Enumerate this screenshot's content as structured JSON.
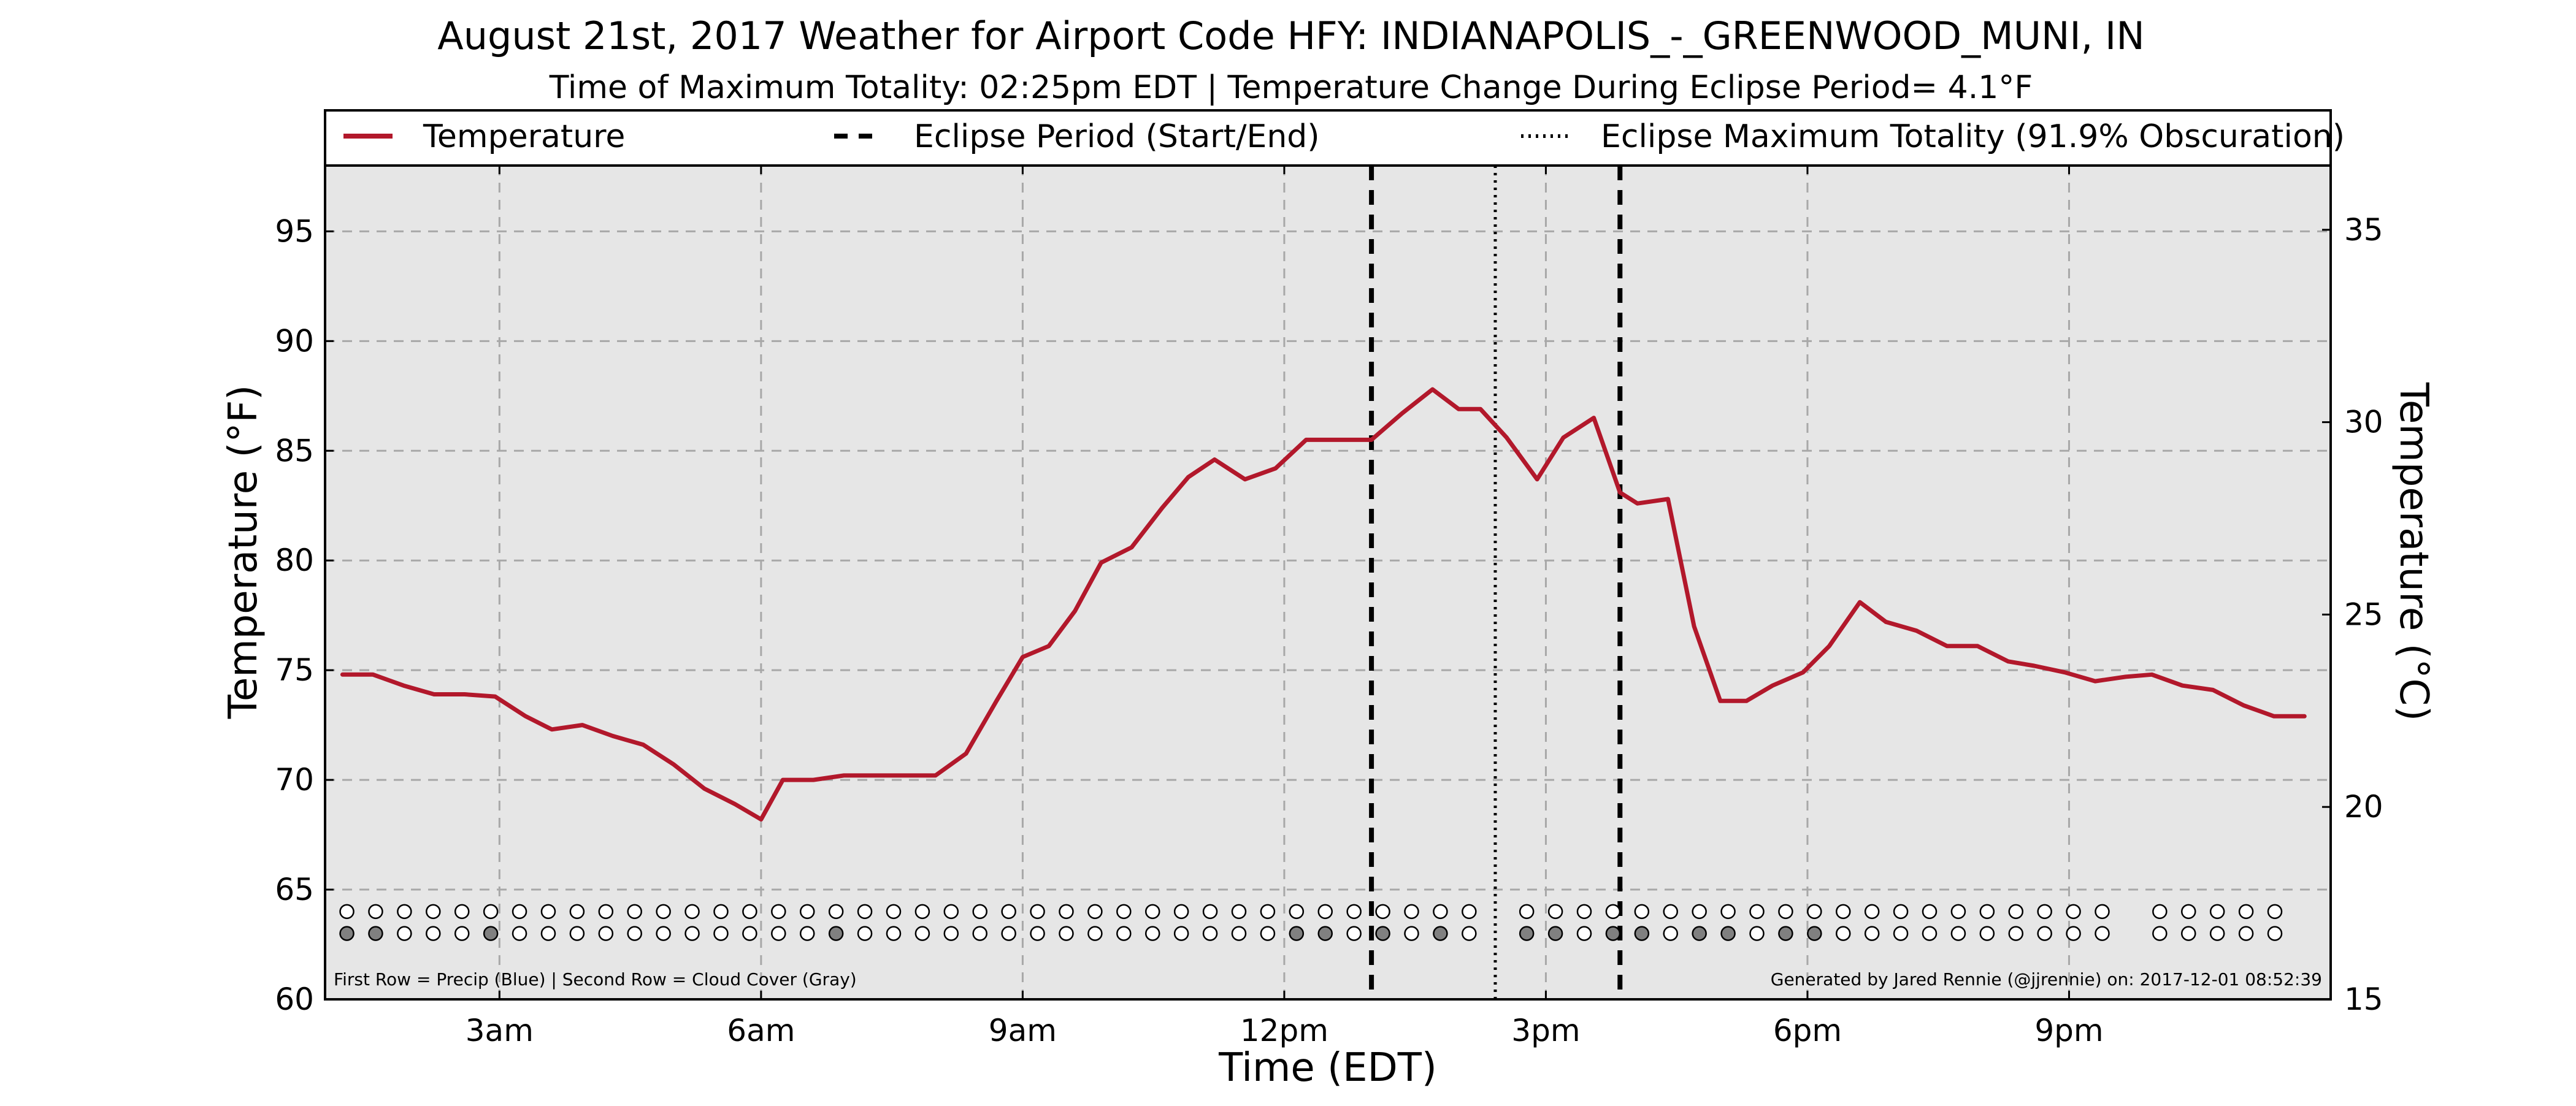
{
  "chart_data": {
    "type": "line",
    "title": "August 21st, 2017 Weather for Airport Code HFY: INDIANAPOLIS_-_GREENWOOD_MUNI, IN",
    "subtitle": "Time of Maximum Totality: 02:25pm EDT | Temperature Change During Eclipse Period= 4.1°F",
    "xlabel": "Time (EDT)",
    "ylabel": "Temperature (°F)",
    "ylabel_right": "Temperature (°C)",
    "x_unit": "hours since midnight EDT",
    "xlim": [
      1.0,
      24.0
    ],
    "ylim": [
      60,
      98
    ],
    "ylim_right": [
      15,
      36.67
    ],
    "x_ticks": [
      {
        "x": 3,
        "label": "3am"
      },
      {
        "x": 6,
        "label": "6am"
      },
      {
        "x": 9,
        "label": "9am"
      },
      {
        "x": 12,
        "label": "12pm"
      },
      {
        "x": 15,
        "label": "3pm"
      },
      {
        "x": 18,
        "label": "6pm"
      },
      {
        "x": 21,
        "label": "9pm"
      }
    ],
    "y_ticks": [
      60,
      65,
      70,
      75,
      80,
      85,
      90,
      95
    ],
    "y_ticks_right": [
      15,
      20,
      25,
      30,
      35
    ],
    "grid": true,
    "legend_position": "top",
    "legend": [
      {
        "label": "Temperature",
        "style": "solid",
        "color": "#b2182b"
      },
      {
        "label": "Eclipse Period (Start/End)",
        "style": "dashed",
        "color": "#000000"
      },
      {
        "label": "Eclipse Maximum Totality (91.9% Obscuration)",
        "style": "dotted",
        "color": "#000000"
      }
    ],
    "series": [
      {
        "name": "Temperature",
        "color": "#b2182b",
        "x": [
          1.2,
          1.55,
          1.9,
          2.25,
          2.6,
          2.95,
          3.3,
          3.6,
          3.95,
          4.3,
          4.65,
          5.0,
          5.35,
          5.7,
          6.0,
          6.25,
          6.6,
          6.95,
          7.3,
          7.65,
          8.0,
          8.35,
          8.7,
          9.0,
          9.3,
          9.6,
          9.9,
          10.25,
          10.6,
          10.9,
          11.2,
          11.55,
          11.9,
          12.25,
          12.6,
          13.0,
          13.35,
          13.7,
          14.0,
          14.25,
          14.55,
          14.9,
          15.2,
          15.55,
          15.85,
          16.05,
          16.4,
          16.7,
          17.0,
          17.3,
          17.6,
          17.95,
          18.25,
          18.6,
          18.9,
          19.25,
          19.6,
          19.95,
          20.3,
          20.6,
          20.95,
          21.3,
          21.65,
          21.95,
          22.3,
          22.65,
          23.0,
          23.35,
          23.7
        ],
        "y": [
          74.8,
          74.8,
          74.3,
          73.9,
          73.9,
          73.8,
          72.9,
          72.3,
          72.5,
          72.0,
          71.6,
          70.7,
          69.6,
          68.9,
          68.2,
          70.0,
          70.0,
          70.2,
          70.2,
          70.2,
          70.2,
          71.2,
          73.6,
          75.6,
          76.1,
          77.7,
          79.9,
          80.6,
          82.4,
          83.8,
          84.6,
          83.7,
          84.2,
          85.5,
          85.5,
          85.5,
          86.7,
          87.8,
          86.9,
          86.9,
          85.6,
          83.7,
          85.6,
          86.5,
          83.1,
          82.6,
          82.8,
          77.0,
          73.6,
          73.6,
          74.3,
          74.9,
          76.1,
          78.1,
          77.2,
          76.8,
          76.1,
          76.1,
          75.4,
          75.2,
          74.9,
          74.5,
          74.7,
          74.8,
          74.3,
          74.1,
          73.4,
          72.9,
          72.9
        ]
      }
    ],
    "eclipse_start": 13.0,
    "eclipse_end": 15.85,
    "eclipse_max": 14.42,
    "marker_rows": {
      "x": [
        1.25,
        1.58,
        1.91,
        2.24,
        2.57,
        2.9,
        3.23,
        3.56,
        3.89,
        4.22,
        4.55,
        4.88,
        5.21,
        5.54,
        5.87,
        6.2,
        6.53,
        6.86,
        7.19,
        7.52,
        7.85,
        8.18,
        8.51,
        8.84,
        9.17,
        9.5,
        9.83,
        10.16,
        10.49,
        10.82,
        11.15,
        11.48,
        11.81,
        12.14,
        12.47,
        12.8,
        13.13,
        13.46,
        13.79,
        14.12,
        14.45,
        14.78,
        15.11,
        15.44,
        15.77,
        16.1,
        16.43,
        16.76,
        17.09,
        17.42,
        17.75,
        18.08,
        18.41,
        18.74,
        19.07,
        19.4,
        19.73,
        20.06,
        20.39,
        20.72,
        21.05,
        21.38,
        21.71,
        22.04,
        22.37,
        22.7,
        23.03,
        23.36
      ],
      "precip": [
        0,
        0,
        0,
        0,
        0,
        0,
        0,
        0,
        0,
        0,
        0,
        0,
        0,
        0,
        0,
        0,
        0,
        0,
        0,
        0,
        0,
        0,
        0,
        0,
        0,
        0,
        0,
        0,
        0,
        0,
        0,
        0,
        0,
        0,
        0,
        0,
        0,
        0,
        0,
        0,
        0,
        0,
        0,
        0,
        0,
        0,
        0,
        0,
        0,
        0,
        0,
        0,
        0,
        0,
        0,
        0,
        0,
        0,
        0,
        0,
        0,
        0,
        0,
        0,
        0,
        0,
        0,
        0
      ],
      "cloud": [
        1,
        1,
        0,
        0,
        0,
        1,
        0,
        0,
        0,
        0,
        0,
        0,
        0,
        0,
        0,
        0,
        0,
        1,
        0,
        0,
        0,
        0,
        0,
        0,
        0,
        0,
        0,
        0,
        0,
        0,
        0,
        0,
        0,
        1,
        1,
        0,
        1,
        0,
        1,
        0,
        0,
        1,
        1,
        0,
        1,
        1,
        0,
        1,
        1,
        0,
        1,
        1,
        0,
        0,
        0,
        0,
        0,
        0,
        0,
        0,
        0,
        0,
        0,
        0,
        0,
        0,
        0,
        0
      ],
      "present": [
        1,
        1,
        1,
        1,
        1,
        1,
        1,
        1,
        1,
        1,
        1,
        1,
        1,
        1,
        1,
        1,
        1,
        1,
        1,
        1,
        1,
        1,
        1,
        1,
        1,
        1,
        1,
        1,
        1,
        1,
        1,
        1,
        1,
        1,
        1,
        1,
        1,
        1,
        1,
        1,
        0,
        1,
        1,
        1,
        1,
        1,
        1,
        1,
        1,
        1,
        1,
        1,
        1,
        1,
        1,
        1,
        1,
        1,
        1,
        1,
        1,
        1,
        0,
        1,
        1,
        1,
        1,
        1
      ]
    },
    "footnote_left": "First Row = Precip (Blue) | Second Row = Cloud Cover (Gray)",
    "footnote_right": "Generated by Jared Rennie (@jjrennie) on: 2017-12-01 08:52:39"
  }
}
